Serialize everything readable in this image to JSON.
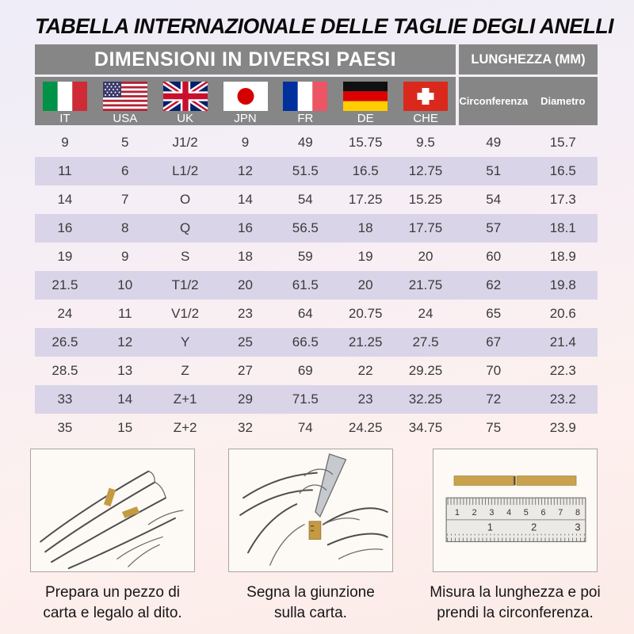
{
  "title": "TABELLA INTERNAZIONALE DELLE TAGLIE DEGLI ANELLI",
  "table": {
    "header_left": "DIMENSIONI IN DIVERSI PAESI",
    "header_right": "LUNGHEZZA (MM)",
    "countries": [
      "IT",
      "USA",
      "UK",
      "JPN",
      "FR",
      "DE",
      "CHE"
    ],
    "length_columns": [
      "Circonferenza",
      "Diametro"
    ],
    "rows": [
      [
        "9",
        "5",
        "J1/2",
        "9",
        "49",
        "15.75",
        "9.5",
        "49",
        "15.7"
      ],
      [
        "11",
        "6",
        "L1/2",
        "12",
        "51.5",
        "16.5",
        "12.75",
        "51",
        "16.5"
      ],
      [
        "14",
        "7",
        "O",
        "14",
        "54",
        "17.25",
        "15.25",
        "54",
        "17.3"
      ],
      [
        "16",
        "8",
        "Q",
        "16",
        "56.5",
        "18",
        "17.75",
        "57",
        "18.1"
      ],
      [
        "19",
        "9",
        "S",
        "18",
        "59",
        "19",
        "20",
        "60",
        "18.9"
      ],
      [
        "21.5",
        "10",
        "T1/2",
        "20",
        "61.5",
        "20",
        "21.75",
        "62",
        "19.8"
      ],
      [
        "24",
        "11",
        "V1/2",
        "23",
        "64",
        "20.75",
        "24",
        "65",
        "20.6"
      ],
      [
        "26.5",
        "12",
        "Y",
        "25",
        "66.5",
        "21.25",
        "27.5",
        "67",
        "21.4"
      ],
      [
        "28.5",
        "13",
        "Z",
        "27",
        "69",
        "22",
        "29.25",
        "70",
        "22.3"
      ],
      [
        "33",
        "14",
        "Z+1",
        "29",
        "71.5",
        "23",
        "32.25",
        "72",
        "23.2"
      ],
      [
        "35",
        "15",
        "Z+2",
        "32",
        "74",
        "24.25",
        "34.75",
        "75",
        "23.9"
      ]
    ]
  },
  "colors": {
    "header_bg": "#868686",
    "row_shade": "#dad4e8",
    "paper_gold": "#c49a42"
  },
  "instructions": [
    {
      "lines": [
        "Prepara un pezzo di",
        "carta e legalo al dito."
      ]
    },
    {
      "lines": [
        "Segna la giunzione",
        "sulla carta."
      ]
    },
    {
      "lines": [
        "Misura la lunghezza e poi",
        "prendi la circonferenza."
      ]
    }
  ],
  "ruler": {
    "cm": [
      "1",
      "2",
      "3",
      "4",
      "5",
      "6",
      "7",
      "8"
    ],
    "inch": [
      "1",
      "2",
      "3"
    ]
  }
}
